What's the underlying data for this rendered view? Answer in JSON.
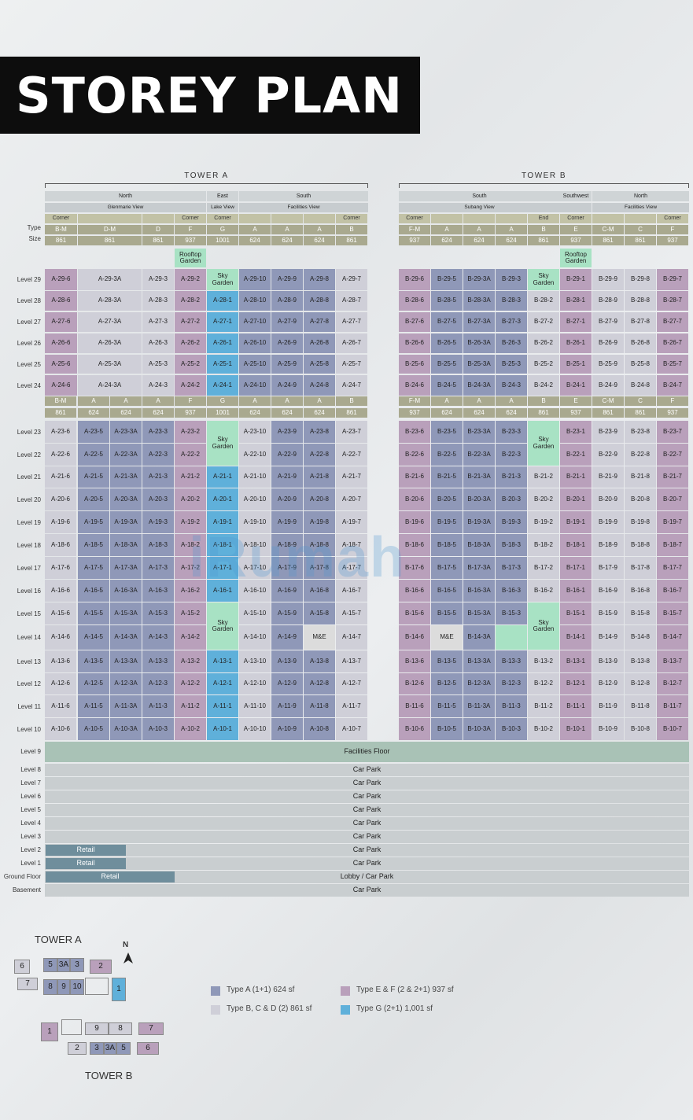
{
  "title": "STOREY PLAN",
  "towers": {
    "a": {
      "name": "TOWER A"
    },
    "b": {
      "name": "TOWER B"
    }
  },
  "row_labels": {
    "type": "Type",
    "size": "Size"
  },
  "tower_a_header": {
    "orient": [
      "North",
      "East",
      "South"
    ],
    "view": [
      "Glenmarie View",
      "Lake View",
      "Facilities View"
    ],
    "corner": [
      "Corner",
      "",
      "",
      "Corner",
      "Corner",
      "",
      "",
      "",
      "Corner"
    ],
    "types": [
      "B-M",
      "D-M",
      "D",
      "F",
      "G",
      "A",
      "A",
      "A",
      "B"
    ],
    "sizes": [
      "861",
      "861",
      "861",
      "937",
      "1001",
      "624",
      "624",
      "624",
      "861"
    ]
  },
  "tower_b_header": {
    "orient": [
      "South",
      "Southwest",
      "North"
    ],
    "view": [
      "Subang View",
      "",
      "Facilities View"
    ],
    "corner": [
      "Corner",
      "",
      "",
      "",
      "End",
      "Corner",
      "",
      "",
      "Corner"
    ],
    "types": [
      "F-M",
      "A",
      "A",
      "A",
      "B",
      "E",
      "C-M",
      "C",
      "F"
    ],
    "sizes": [
      "937",
      "624",
      "624",
      "624",
      "861",
      "937",
      "861",
      "861",
      "937"
    ]
  },
  "mid_header": {
    "a_types": [
      "B-M",
      "A",
      "A",
      "A",
      "F",
      "G",
      "A",
      "A",
      "A",
      "B"
    ],
    "a_sizes": [
      "861",
      "624",
      "624",
      "624",
      "937",
      "1001",
      "624",
      "624",
      "624",
      "861"
    ],
    "b_types": [
      "F-M",
      "A",
      "A",
      "A",
      "B",
      "E",
      "C-M",
      "C",
      "F"
    ],
    "b_sizes": [
      "937",
      "624",
      "624",
      "624",
      "861",
      "937",
      "861",
      "861",
      "937"
    ]
  },
  "rooftop_garden": "Rooftop Garden",
  "sky_garden": "Sky Garden",
  "me": "M&E",
  "upper_levels": [
    {
      "label": "Level 29",
      "a": [
        "A-29-6",
        "A-29-3A",
        "A-29-3",
        "A-29-2",
        "Sky Garden",
        "A-29-10",
        "A-29-9",
        "A-29-8",
        "A-29-7"
      ],
      "b": [
        "B-29-6",
        "B-29-5",
        "B-29-3A",
        "B-29-3",
        "Sky Garden",
        "B-29-1",
        "B-29-9",
        "B-29-8",
        "B-29-7"
      ]
    },
    {
      "label": "Level 28",
      "a": [
        "A-28-6",
        "A-28-3A",
        "A-28-3",
        "A-28-2",
        "A-28-1",
        "A-28-10",
        "A-28-9",
        "A-28-8",
        "A-28-7"
      ],
      "b": [
        "B-28-6",
        "B-28-5",
        "B-28-3A",
        "B-28-3",
        "B-28-2",
        "B-28-1",
        "B-28-9",
        "B-28-8",
        "B-28-7"
      ]
    },
    {
      "label": "Level 27",
      "a": [
        "A-27-6",
        "A-27-3A",
        "A-27-3",
        "A-27-2",
        "A-27-1",
        "A-27-10",
        "A-27-9",
        "A-27-8",
        "A-27-7"
      ],
      "b": [
        "B-27-6",
        "B-27-5",
        "B-27-3A",
        "B-27-3",
        "B-27-2",
        "B-27-1",
        "B-27-9",
        "B-27-8",
        "B-27-7"
      ]
    },
    {
      "label": "Level 26",
      "a": [
        "A-26-6",
        "A-26-3A",
        "A-26-3",
        "A-26-2",
        "A-26-1",
        "A-26-10",
        "A-26-9",
        "A-26-8",
        "A-26-7"
      ],
      "b": [
        "B-26-6",
        "B-26-5",
        "B-26-3A",
        "B-26-3",
        "B-26-2",
        "B-26-1",
        "B-26-9",
        "B-26-8",
        "B-26-7"
      ]
    },
    {
      "label": "Level 25",
      "a": [
        "A-25-6",
        "A-25-3A",
        "A-25-3",
        "A-25-2",
        "A-25-1",
        "A-25-10",
        "A-25-9",
        "A-25-8",
        "A-25-7"
      ],
      "b": [
        "B-25-6",
        "B-25-5",
        "B-25-3A",
        "B-25-3",
        "B-25-2",
        "B-25-1",
        "B-25-9",
        "B-25-8",
        "B-25-7"
      ]
    },
    {
      "label": "Level 24",
      "a": [
        "A-24-6",
        "A-24-3A",
        "A-24-3",
        "A-24-2",
        "A-24-1",
        "A-24-10",
        "A-24-9",
        "A-24-8",
        "A-24-7"
      ],
      "b": [
        "B-24-6",
        "B-24-5",
        "B-24-3A",
        "B-24-3",
        "B-24-2",
        "B-24-1",
        "B-24-9",
        "B-24-8",
        "B-24-7"
      ]
    }
  ],
  "lower_levels": [
    {
      "label": "Level 23",
      "a": [
        "A-23-6",
        "A-23-5",
        "A-23-3A",
        "A-23-3",
        "A-23-2",
        "Sky Garden",
        "A-23-10",
        "A-23-9",
        "A-23-8",
        "A-23-7"
      ],
      "b": [
        "B-23-6",
        "B-23-5",
        "B-23-3A",
        "B-23-3",
        "Sky Garden",
        "B-23-1",
        "B-23-9",
        "B-23-8",
        "B-23-7"
      ]
    },
    {
      "label": "Level 22",
      "a": [
        "A-22-6",
        "A-22-5",
        "A-22-3A",
        "A-22-3",
        "A-22-2",
        "",
        "A-22-10",
        "A-22-9",
        "A-22-8",
        "A-22-7"
      ],
      "b": [
        "B-22-6",
        "B-22-5",
        "B-22-3A",
        "B-22-3",
        "",
        "B-22-1",
        "B-22-9",
        "B-22-8",
        "B-22-7"
      ]
    },
    {
      "label": "Level 21",
      "a": [
        "A-21-6",
        "A-21-5",
        "A-21-3A",
        "A-21-3",
        "A-21-2",
        "A-21-1",
        "A-21-10",
        "A-21-9",
        "A-21-8",
        "A-21-7"
      ],
      "b": [
        "B-21-6",
        "B-21-5",
        "B-21-3A",
        "B-21-3",
        "B-21-2",
        "B-21-1",
        "B-21-9",
        "B-21-8",
        "B-21-7"
      ]
    },
    {
      "label": "Level 20",
      "a": [
        "A-20-6",
        "A-20-5",
        "A-20-3A",
        "A-20-3",
        "A-20-2",
        "A-20-1",
        "A-20-10",
        "A-20-9",
        "A-20-8",
        "A-20-7"
      ],
      "b": [
        "B-20-6",
        "B-20-5",
        "B-20-3A",
        "B-20-3",
        "B-20-2",
        "B-20-1",
        "B-20-9",
        "B-20-8",
        "B-20-7"
      ]
    },
    {
      "label": "Level 19",
      "a": [
        "A-19-6",
        "A-19-5",
        "A-19-3A",
        "A-19-3",
        "A-19-2",
        "A-19-1",
        "A-19-10",
        "A-19-9",
        "A-19-8",
        "A-19-7"
      ],
      "b": [
        "B-19-6",
        "B-19-5",
        "B-19-3A",
        "B-19-3",
        "B-19-2",
        "B-19-1",
        "B-19-9",
        "B-19-8",
        "B-19-7"
      ]
    },
    {
      "label": "Level 18",
      "a": [
        "A-18-6",
        "A-18-5",
        "A-18-3A",
        "A-18-3",
        "A-18-2",
        "A-18-1",
        "A-18-10",
        "A-18-9",
        "A-18-8",
        "A-18-7"
      ],
      "b": [
        "B-18-6",
        "B-18-5",
        "B-18-3A",
        "B-18-3",
        "B-18-2",
        "B-18-1",
        "B-18-9",
        "B-18-8",
        "B-18-7"
      ]
    },
    {
      "label": "Level 17",
      "a": [
        "A-17-6",
        "A-17-5",
        "A-17-3A",
        "A-17-3",
        "A-17-2",
        "A-17-1",
        "A-17-10",
        "A-17-9",
        "A-17-8",
        "A-17-7"
      ],
      "b": [
        "B-17-6",
        "B-17-5",
        "B-17-3A",
        "B-17-3",
        "B-17-2",
        "B-17-1",
        "B-17-9",
        "B-17-8",
        "B-17-7"
      ]
    },
    {
      "label": "Level 16",
      "a": [
        "A-16-6",
        "A-16-5",
        "A-16-3A",
        "A-16-3",
        "A-16-2",
        "A-16-1",
        "A-16-10",
        "A-16-9",
        "A-16-8",
        "A-16-7"
      ],
      "b": [
        "B-16-6",
        "B-16-5",
        "B-16-3A",
        "B-16-3",
        "B-16-2",
        "B-16-1",
        "B-16-9",
        "B-16-8",
        "B-16-7"
      ]
    },
    {
      "label": "Level 15",
      "a": [
        "A-15-6",
        "A-15-5",
        "A-15-3A",
        "A-15-3",
        "A-15-2",
        "Sky Garden",
        "A-15-10",
        "A-15-9",
        "A-15-8",
        "A-15-7"
      ],
      "b": [
        "B-15-6",
        "B-15-5",
        "B-15-3A",
        "B-15-3",
        "Sky Garden",
        "B-15-1",
        "B-15-9",
        "B-15-8",
        "B-15-7"
      ]
    },
    {
      "label": "Level 14",
      "a": [
        "A-14-6",
        "A-14-5",
        "A-14-3A",
        "A-14-3",
        "A-14-2",
        "",
        "A-14-10",
        "A-14-9",
        "M&E",
        "A-14-7"
      ],
      "b": [
        "B-14-6",
        "M&E",
        "B-14-3A",
        "",
        "",
        "B-14-1",
        "B-14-9",
        "B-14-8",
        "B-14-7"
      ]
    },
    {
      "label": "Level 13",
      "a": [
        "A-13-6",
        "A-13-5",
        "A-13-3A",
        "A-13-3",
        "A-13-2",
        "A-13-1",
        "A-13-10",
        "A-13-9",
        "A-13-8",
        "A-13-7"
      ],
      "b": [
        "B-13-6",
        "B-13-5",
        "B-13-3A",
        "B-13-3",
        "B-13-2",
        "B-13-1",
        "B-13-9",
        "B-13-8",
        "B-13-7"
      ]
    },
    {
      "label": "Level 12",
      "a": [
        "A-12-6",
        "A-12-5",
        "A-12-3A",
        "A-12-3",
        "A-12-2",
        "A-12-1",
        "A-12-10",
        "A-12-9",
        "A-12-8",
        "A-12-7"
      ],
      "b": [
        "B-12-6",
        "B-12-5",
        "B-12-3A",
        "B-12-3",
        "B-12-2",
        "B-12-1",
        "B-12-9",
        "B-12-8",
        "B-12-7"
      ]
    },
    {
      "label": "Level 11",
      "a": [
        "A-11-6",
        "A-11-5",
        "A-11-3A",
        "A-11-3",
        "A-11-2",
        "A-11-1",
        "A-11-10",
        "A-11-9",
        "A-11-8",
        "A-11-7"
      ],
      "b": [
        "B-11-6",
        "B-11-5",
        "B-11-3A",
        "B-11-3",
        "B-11-2",
        "B-11-1",
        "B-11-9",
        "B-11-8",
        "B-11-7"
      ]
    },
    {
      "label": "Level 10",
      "a": [
        "A-10-6",
        "A-10-5",
        "A-10-3A",
        "A-10-3",
        "A-10-2",
        "A-10-1",
        "A-10-10",
        "A-10-9",
        "A-10-8",
        "A-10-7"
      ],
      "b": [
        "B-10-6",
        "B-10-5",
        "B-10-3A",
        "B-10-3",
        "B-10-2",
        "B-10-1",
        "B-10-9",
        "B-10-8",
        "B-10-7"
      ]
    }
  ],
  "podium": [
    {
      "label": "Level 9",
      "text": "Facilities Floor",
      "retail": ""
    },
    {
      "label": "Level 8",
      "text": "Car Park",
      "retail": ""
    },
    {
      "label": "Level 7",
      "text": "Car Park",
      "retail": ""
    },
    {
      "label": "Level 6",
      "text": "Car Park",
      "retail": ""
    },
    {
      "label": "Level 5",
      "text": "Car Park",
      "retail": ""
    },
    {
      "label": "Level 4",
      "text": "Car Park",
      "retail": ""
    },
    {
      "label": "Level 3",
      "text": "Car Park",
      "retail": ""
    },
    {
      "label": "Level 2",
      "text": "Car Park",
      "retail": "Retail"
    },
    {
      "label": "Level 1",
      "text": "Car Park",
      "retail": "Retail"
    },
    {
      "label": "Ground Floor",
      "text": "Lobby / Car Park",
      "retail": "Retail"
    },
    {
      "label": "Basement",
      "text": "Car Park",
      "retail": ""
    }
  ],
  "watermark": "iRumah",
  "legend": [
    {
      "text": "Type A (1+1) 624 sf",
      "color": "#8f98b8"
    },
    {
      "text": "Type E & F (2 & 2+1) 937 sf",
      "color": "#b9a0bb"
    },
    {
      "text": "Type B, C & D (2) 861 sf",
      "color": "#cfcfd8"
    },
    {
      "text": "Type G (2+1) 1,001 sf",
      "color": "#5fb0da"
    }
  ],
  "site_plan": {
    "tower_a_label": "TOWER A",
    "tower_b_label": "TOWER B",
    "north": "N",
    "a_units": [
      "6",
      "5",
      "3A",
      "3",
      "2",
      "7",
      "8",
      "9",
      "10",
      "1"
    ],
    "b_units": [
      "1",
      "9",
      "8",
      "7",
      "2",
      "3",
      "3A",
      "5",
      "6"
    ]
  },
  "colors": {
    "type_a": "#8f98b8",
    "type_bcd": "#cfcfd8",
    "type_ef": "#b9a0bb",
    "type_g": "#5fb0da",
    "sky_garden": "#a8e2c4",
    "facilities": "#a9c2b6",
    "car_park": "#c9ced0",
    "retail": "#6f8e9c",
    "header_khaki": "#a9a98f"
  }
}
